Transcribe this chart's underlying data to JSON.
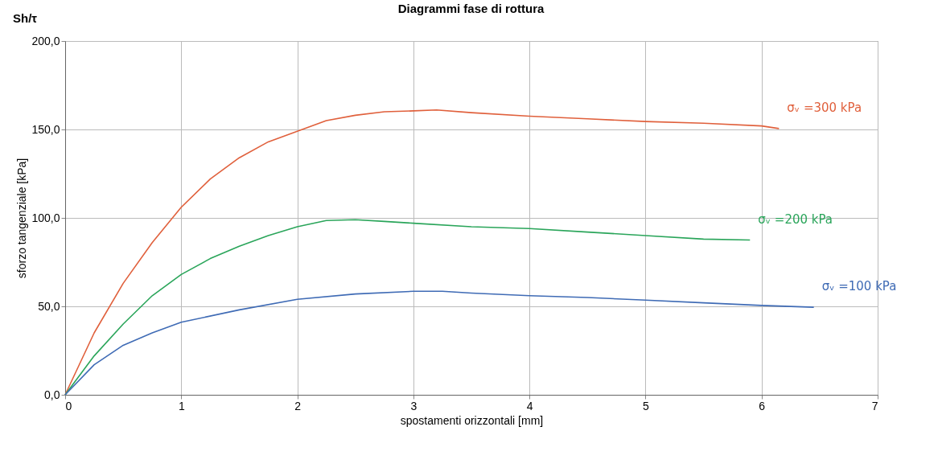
{
  "chart_data": {
    "type": "line",
    "title": "Diagrammi fase di rottura",
    "xlabel": "spostamenti orizzontali [mm]",
    "ylabel": "sforzo tangenziale [kPa]",
    "annotations": [
      "Sh/τ"
    ],
    "xlim": [
      0,
      7
    ],
    "xticks": [
      0,
      1,
      2,
      3,
      4,
      5,
      6,
      7
    ],
    "ylim": [
      0,
      200
    ],
    "yticks": [
      {
        "value": 0,
        "label": "0,0"
      },
      {
        "value": 50,
        "label": "50,0"
      },
      {
        "value": 100,
        "label": "100,0"
      },
      {
        "value": 150,
        "label": "150,0"
      },
      {
        "value": 200,
        "label": "200,0"
      }
    ],
    "grid": true,
    "legend": false,
    "line_style": "solid",
    "marker": "none",
    "series": [
      {
        "name": "σᵥ =300 kPa",
        "color": "#e0603c",
        "x": [
          0,
          0.25,
          0.5,
          0.75,
          1,
          1.25,
          1.5,
          1.75,
          2,
          2.25,
          2.5,
          2.75,
          3,
          3.2,
          3.5,
          4,
          4.5,
          5,
          5.5,
          6,
          6.15
        ],
        "values": [
          0,
          35,
          63,
          86,
          106,
          122,
          134,
          143,
          149,
          155,
          158,
          160,
          160.5,
          161,
          159.5,
          157.5,
          156,
          154.5,
          153.5,
          152,
          150.5
        ]
      },
      {
        "name": "σᵥ =200 kPa",
        "color": "#2aa55a",
        "x": [
          0,
          0.25,
          0.5,
          0.75,
          1,
          1.25,
          1.5,
          1.75,
          2,
          2.25,
          2.5,
          2.75,
          3,
          3.5,
          4,
          4.5,
          5,
          5.5,
          5.9
        ],
        "values": [
          0,
          22,
          40,
          56,
          68,
          77,
          84,
          90,
          95,
          98.5,
          99,
          98,
          97,
          95,
          94,
          92,
          90,
          88,
          87.5
        ]
      },
      {
        "name": "σᵥ =100 kPa",
        "color": "#3f6bb5",
        "x": [
          0,
          0.25,
          0.5,
          0.75,
          1,
          1.5,
          2,
          2.5,
          3,
          3.25,
          3.5,
          4,
          4.5,
          5,
          5.5,
          6,
          6.45
        ],
        "values": [
          0,
          17,
          28,
          35,
          41,
          48,
          54,
          57,
          58.5,
          58.5,
          57.5,
          56,
          55,
          53.5,
          52,
          50.5,
          49.5
        ]
      }
    ]
  }
}
